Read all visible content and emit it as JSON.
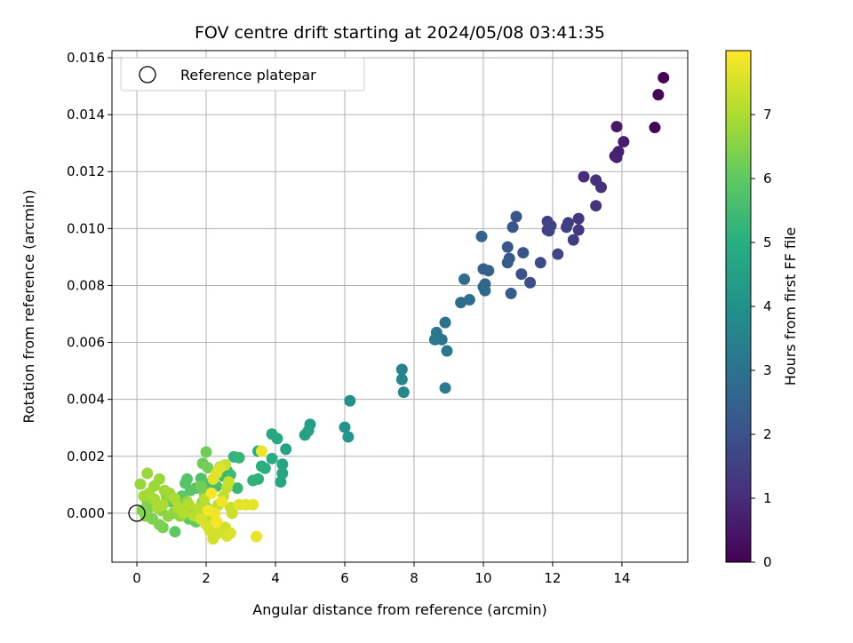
{
  "chart_data": {
    "type": "scatter",
    "title": "FOV centre drift starting at 2024/05/08 03:41:35",
    "xlabel": "Angular distance from reference (arcmin)",
    "ylabel": "Rotation from reference (arcmin)",
    "xlim": [
      -0.72,
      15.9
    ],
    "ylim": [
      -0.00172,
      0.01625
    ],
    "xticks": [
      0,
      2,
      4,
      6,
      8,
      10,
      12,
      14
    ],
    "xtick_labels": [
      "0",
      "2",
      "4",
      "6",
      "8",
      "10",
      "12",
      "14"
    ],
    "yticks": [
      0.0,
      0.002,
      0.004,
      0.006,
      0.008,
      0.01,
      0.012,
      0.014,
      0.016
    ],
    "ytick_labels": [
      "0.000",
      "0.002",
      "0.004",
      "0.006",
      "0.008",
      "0.010",
      "0.012",
      "0.014",
      "0.016"
    ],
    "grid": true,
    "legend": {
      "placement": "top-left",
      "entries": [
        {
          "label": "Reference platepar",
          "marker": "open-circle"
        }
      ]
    },
    "reference_point": {
      "x": 0,
      "y": 0
    },
    "colormap": "viridis",
    "colorbar": {
      "label": "Hours from first FF file",
      "range": [
        0,
        8.0
      ],
      "ticks": [
        0,
        1,
        2,
        3,
        4,
        5,
        6,
        7
      ],
      "tick_labels": [
        "0",
        "1",
        "2",
        "3",
        "4",
        "5",
        "6",
        "7"
      ]
    },
    "points": [
      [
        15.2,
        0.0153,
        0.0
      ],
      [
        15.05,
        0.0147,
        0.05
      ],
      [
        14.95,
        0.01355,
        0.1
      ],
      [
        13.85,
        0.01358,
        0.55
      ],
      [
        14.05,
        0.01305,
        0.65
      ],
      [
        13.8,
        0.01255,
        0.75
      ],
      [
        13.9,
        0.0127,
        0.7
      ],
      [
        13.85,
        0.0125,
        0.8
      ],
      [
        12.9,
        0.01182,
        1.0
      ],
      [
        13.25,
        0.0117,
        1.05
      ],
      [
        13.4,
        0.01145,
        1.1
      ],
      [
        13.25,
        0.0108,
        1.2
      ],
      [
        12.75,
        0.01035,
        1.3
      ],
      [
        12.75,
        0.00995,
        1.35
      ],
      [
        12.6,
        0.0096,
        1.4
      ],
      [
        12.45,
        0.0102,
        1.45
      ],
      [
        12.4,
        0.01005,
        1.5
      ],
      [
        11.85,
        0.01025,
        1.55
      ],
      [
        11.95,
        0.0101,
        1.6
      ],
      [
        11.85,
        0.00995,
        1.62
      ],
      [
        11.9,
        0.00992,
        1.65
      ],
      [
        12.15,
        0.0091,
        1.7
      ],
      [
        11.65,
        0.0088,
        1.8
      ],
      [
        11.35,
        0.0081,
        1.9
      ],
      [
        11.1,
        0.0084,
        1.95
      ],
      [
        11.15,
        0.00915,
        2.0
      ],
      [
        10.95,
        0.01042,
        2.1
      ],
      [
        10.85,
        0.01005,
        2.15
      ],
      [
        10.7,
        0.00935,
        2.2
      ],
      [
        10.75,
        0.00895,
        2.25
      ],
      [
        10.7,
        0.0088,
        2.3
      ],
      [
        10.8,
        0.00772,
        2.35
      ],
      [
        10.15,
        0.00852,
        2.45
      ],
      [
        10.0,
        0.00858,
        2.5
      ],
      [
        9.95,
        0.00972,
        2.55
      ],
      [
        10.05,
        0.00805,
        2.6
      ],
      [
        10.0,
        0.00795,
        2.65
      ],
      [
        10.05,
        0.00782,
        2.7
      ],
      [
        9.45,
        0.00822,
        2.8
      ],
      [
        9.6,
        0.0075,
        2.9
      ],
      [
        9.35,
        0.0074,
        2.95
      ],
      [
        8.9,
        0.0067,
        3.0
      ],
      [
        8.8,
        0.0061,
        3.05
      ],
      [
        8.65,
        0.00635,
        3.1
      ],
      [
        8.6,
        0.0061,
        3.15
      ],
      [
        8.95,
        0.0057,
        3.2
      ],
      [
        8.9,
        0.0044,
        3.3
      ],
      [
        7.65,
        0.00505,
        3.5
      ],
      [
        7.65,
        0.0047,
        3.6
      ],
      [
        7.7,
        0.00425,
        3.7
      ],
      [
        6.15,
        0.00395,
        4.0
      ],
      [
        6.0,
        0.00302,
        4.1
      ],
      [
        6.1,
        0.00268,
        4.2
      ],
      [
        5.0,
        0.00312,
        4.4
      ],
      [
        4.95,
        0.0029,
        4.5
      ],
      [
        4.85,
        0.00275,
        4.55
      ],
      [
        4.3,
        0.00225,
        4.6
      ],
      [
        4.2,
        0.00172,
        4.65
      ],
      [
        4.2,
        0.0014,
        4.7
      ],
      [
        4.15,
        0.0011,
        4.75
      ],
      [
        3.9,
        0.00278,
        4.8
      ],
      [
        4.05,
        0.00262,
        4.85
      ],
      [
        3.9,
        0.00192,
        4.9
      ],
      [
        3.5,
        0.00218,
        4.95
      ],
      [
        3.6,
        0.00165,
        5.0
      ],
      [
        3.7,
        0.00158,
        5.05
      ],
      [
        3.5,
        0.0012,
        5.1
      ],
      [
        3.35,
        0.00115,
        5.15
      ],
      [
        2.8,
        0.00198,
        5.2
      ],
      [
        2.95,
        0.00195,
        5.25
      ],
      [
        2.9,
        0.00088,
        5.3
      ],
      [
        2.7,
        0.00135,
        5.35
      ],
      [
        2.6,
        0.0015,
        5.4
      ],
      [
        2.5,
        0.0013,
        5.45
      ],
      [
        2.4,
        0.00162,
        5.5
      ],
      [
        2.15,
        0.0011,
        5.55
      ],
      [
        2.3,
        0.00095,
        5.6
      ],
      [
        2.0,
        0.0008,
        5.65
      ],
      [
        1.85,
        0.00122,
        5.7
      ],
      [
        1.7,
        0.00088,
        5.75
      ],
      [
        1.45,
        0.0012,
        5.8
      ],
      [
        1.4,
        0.00105,
        5.82
      ],
      [
        1.55,
        0.0008,
        5.85
      ],
      [
        1.3,
        0.0006,
        5.9
      ],
      [
        1.2,
        0.0003,
        5.92
      ],
      [
        1.1,
        -0.00065,
        5.95
      ],
      [
        1.0,
        0.0004,
        6.0
      ],
      [
        1.5,
        -0.0002,
        6.02
      ],
      [
        1.7,
        -0.0003,
        6.05
      ],
      [
        1.6,
        0.0001,
        6.07
      ],
      [
        1.9,
        0.0004,
        6.1
      ],
      [
        2.0,
        0.0002,
        6.12
      ],
      [
        1.8,
        -0.0001,
        6.15
      ],
      [
        1.35,
        0.0002,
        6.17
      ],
      [
        2.0,
        0.00215,
        6.2
      ],
      [
        1.9,
        0.00175,
        6.22
      ],
      [
        2.05,
        0.0016,
        6.25
      ],
      [
        1.85,
        0.00095,
        6.27
      ],
      [
        1.95,
        0.0007,
        6.3
      ],
      [
        0.75,
        -0.0005,
        6.32
      ],
      [
        0.65,
        -0.0004,
        6.35
      ],
      [
        0.45,
        -0.0002,
        6.37
      ],
      [
        0.35,
        0.0002,
        6.4
      ],
      [
        0.3,
        0.0004,
        6.42
      ],
      [
        0.25,
        -0.0001,
        6.45
      ],
      [
        0.15,
        0.0001,
        6.47
      ],
      [
        0.4,
        0.0005,
        6.5
      ],
      [
        0.55,
        0.0003,
        6.52
      ],
      [
        0.7,
        0.0001,
        6.55
      ],
      [
        0.85,
        0.0006,
        6.57
      ],
      [
        0.9,
        -0.0001,
        6.6
      ],
      [
        1.05,
        0.0,
        6.62
      ],
      [
        1.25,
        -0.0001,
        6.65
      ],
      [
        1.45,
        0.0004,
        6.67
      ],
      [
        1.6,
        0.0,
        6.7
      ],
      [
        0.1,
        0.00102,
        6.72
      ],
      [
        0.3,
        0.0014,
        6.75
      ],
      [
        0.5,
        0.00095,
        6.77
      ],
      [
        0.65,
        0.0012,
        6.8
      ],
      [
        0.8,
        0.0008,
        6.82
      ],
      [
        0.95,
        0.0007,
        6.85
      ],
      [
        0.2,
        0.0006,
        6.87
      ],
      [
        0.35,
        0.0007,
        6.9
      ],
      [
        0.5,
        0.0005,
        6.92
      ],
      [
        0.6,
        0.0002,
        6.95
      ],
      [
        0.75,
        0.0003,
        6.97
      ],
      [
        1.1,
        0.0005,
        7.0
      ],
      [
        1.2,
        0.0002,
        7.02
      ],
      [
        1.35,
        0.0,
        7.05
      ],
      [
        1.5,
        0.0003,
        7.07
      ],
      [
        1.65,
        -0.0001,
        7.1
      ],
      [
        1.8,
        0.0002,
        7.12
      ],
      [
        1.95,
        0.0005,
        7.15
      ],
      [
        2.1,
        -0.0002,
        7.17
      ],
      [
        2.2,
        0.0001,
        7.2
      ],
      [
        2.35,
        0.0003,
        7.22
      ],
      [
        2.5,
        0.0006,
        7.25
      ],
      [
        2.6,
        0.0009,
        7.27
      ],
      [
        2.65,
        0.0011,
        7.3
      ],
      [
        2.55,
        0.0017,
        7.32
      ],
      [
        2.7,
        0.0002,
        7.35
      ],
      [
        2.75,
        0.0,
        7.37
      ],
      [
        2.55,
        -0.0005,
        7.4
      ],
      [
        2.35,
        -0.0007,
        7.42
      ],
      [
        2.2,
        -0.0009,
        7.45
      ],
      [
        2.1,
        -0.0006,
        7.47
      ],
      [
        2.0,
        -0.0004,
        7.5
      ],
      [
        1.85,
        -0.0002,
        7.52
      ],
      [
        2.6,
        -0.0008,
        7.55
      ],
      [
        2.7,
        -0.0007,
        7.57
      ],
      [
        2.4,
        0.0016,
        7.6
      ],
      [
        2.3,
        0.0014,
        7.62
      ],
      [
        2.2,
        0.0012,
        7.65
      ],
      [
        2.95,
        0.0003,
        7.67
      ],
      [
        3.15,
        0.0003,
        7.7
      ],
      [
        3.35,
        0.0003,
        7.72
      ],
      [
        3.45,
        -0.00082,
        7.75
      ],
      [
        3.6,
        0.00218,
        7.8
      ],
      [
        2.45,
        0.0004,
        7.82
      ],
      [
        2.25,
        0.0,
        7.85
      ],
      [
        2.05,
        0.0001,
        7.88
      ],
      [
        2.3,
        -0.0003,
        7.9
      ],
      [
        2.15,
        0.0007,
        7.92
      ]
    ]
  }
}
